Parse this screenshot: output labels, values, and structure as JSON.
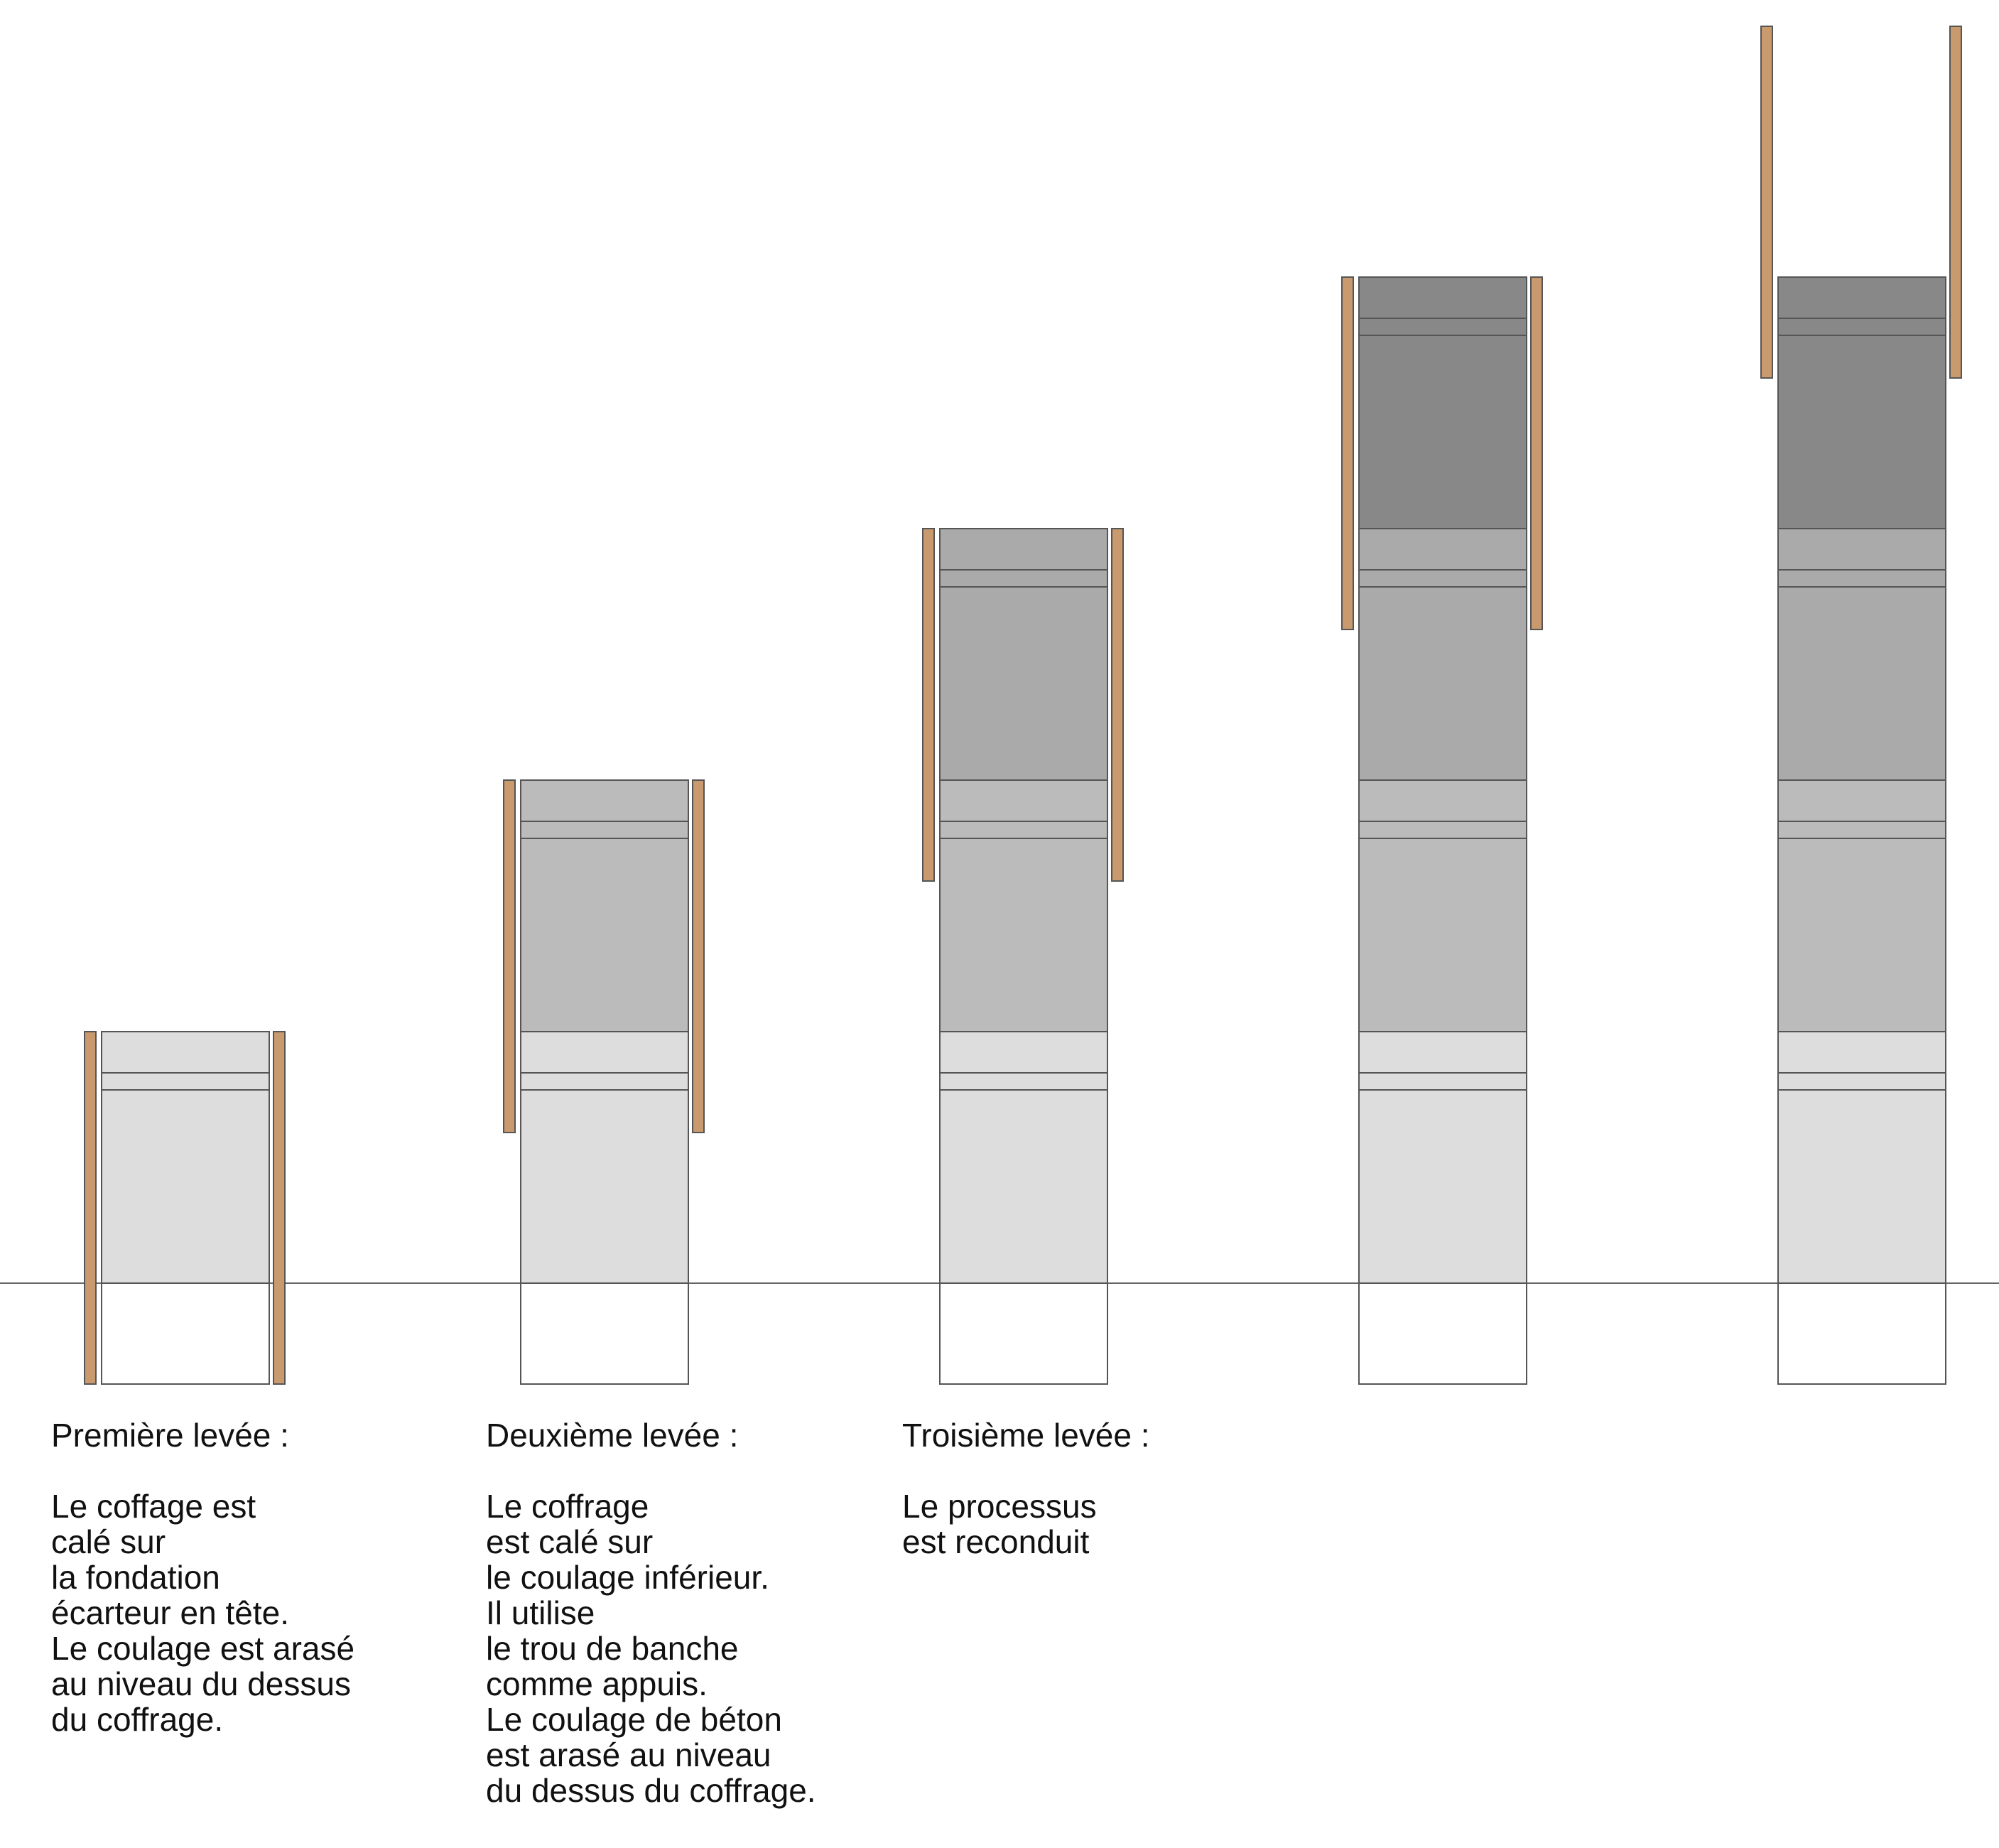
{
  "colors": {
    "background": "#ffffff",
    "outline": "#555555",
    "ground_line": "#666666",
    "formwork": "#c99a6e",
    "lift_1": "#dddddd",
    "lift_2": "#bbbbbb",
    "lift_3": "#aaaaaa",
    "lift_4": "#888888"
  },
  "captions": [
    {
      "title": "Première levée :",
      "lines": [
        "Le coffage est",
        "calé sur",
        "la fondation",
        "écarteur en tête.",
        "Le coulage est arasé",
        "au niveau du dessus",
        "du coffrage."
      ]
    },
    {
      "title": "Deuxième levée :",
      "lines": [
        "Le coffrage",
        "est calé sur",
        "le coulage inférieur.",
        "Il utilise",
        "le trou de banche",
        "comme appuis.",
        "Le coulage de béton",
        "est arasé au niveau",
        "du dessus du coffrage."
      ]
    },
    {
      "title": "Troisième levée :",
      "lines": [
        "Le processus",
        "est reconduit"
      ]
    }
  ]
}
